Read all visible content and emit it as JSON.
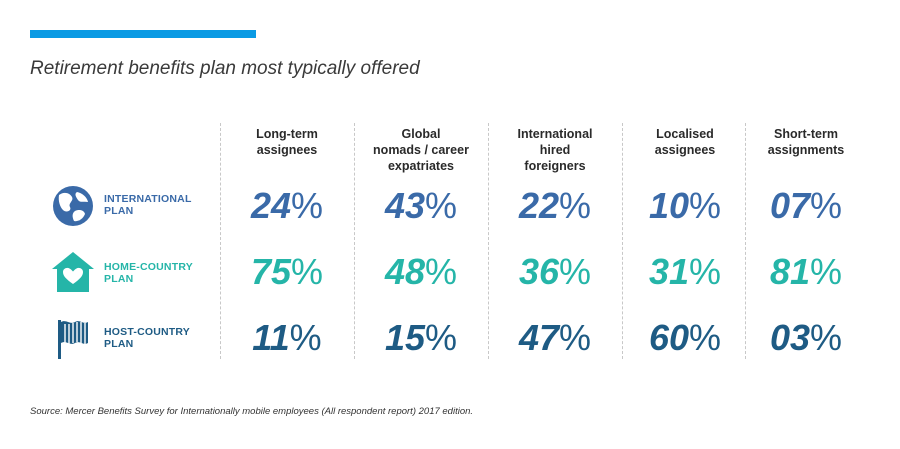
{
  "colors": {
    "accent_bar": "#0a9ae4",
    "blue": "#3a6aa8",
    "teal": "#25b5a8",
    "navy": "#1e5b84"
  },
  "title": "Retirement benefits plan most typically offered",
  "source": "Source: Mercer Benefits Survey for Internationally mobile employees (All respondent report) 2017 edition.",
  "chart_data": {
    "type": "table",
    "title": "Retirement benefits plan most typically offered",
    "columns": [
      [
        "Long-term",
        "assignees"
      ],
      [
        "Global",
        "nomads / career",
        "expatriates"
      ],
      [
        "International",
        "hired",
        "foreigners"
      ],
      [
        "Localised",
        "assignees"
      ],
      [
        "Short-term",
        "assignments"
      ]
    ],
    "rows": [
      {
        "label": [
          "INTERNATIONAL",
          "PLAN"
        ],
        "icon": "globe-icon",
        "values": [
          "24",
          "43",
          "22",
          "10",
          "07"
        ]
      },
      {
        "label": [
          "HOME-COUNTRY",
          "PLAN"
        ],
        "icon": "house-heart-icon",
        "values": [
          "75",
          "48",
          "36",
          "31",
          "81"
        ]
      },
      {
        "label": [
          "HOST-COUNTRY",
          "PLAN"
        ],
        "icon": "flag-icon",
        "values": [
          "11",
          "15",
          "47",
          "60",
          "03"
        ]
      }
    ],
    "unit": "%"
  }
}
